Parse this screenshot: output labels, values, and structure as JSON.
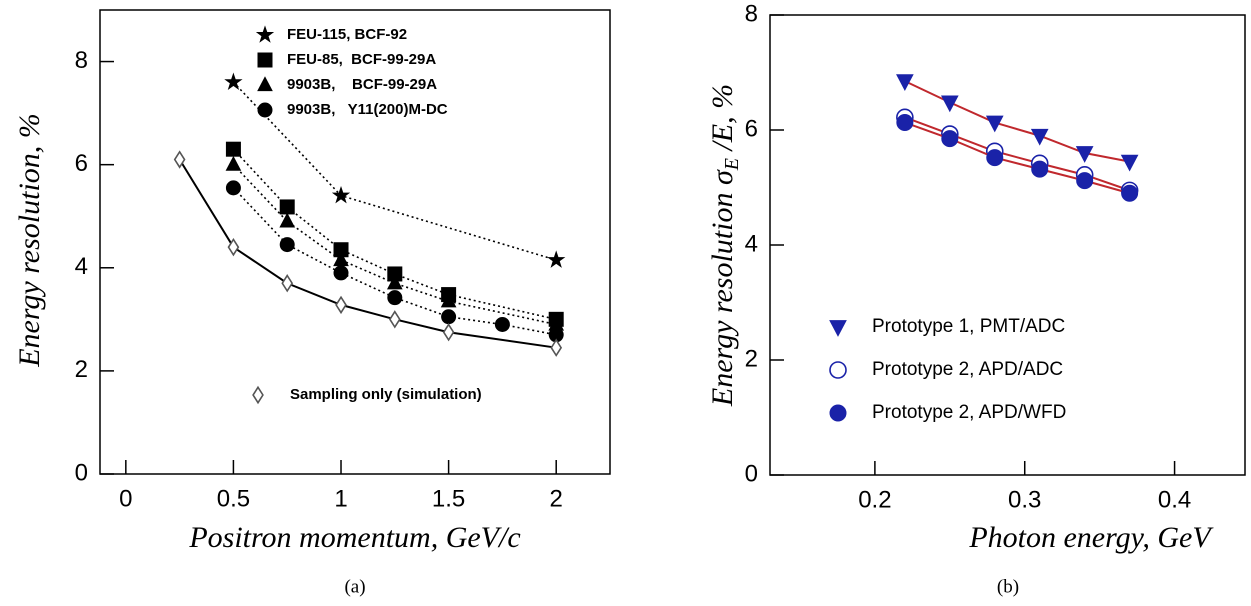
{
  "chart_data": [
    {
      "type": "scatter",
      "caption": "(a)",
      "xlabel": "Positron momentum, GeV/c",
      "ylabel": "Energy resolution, %",
      "xlim": [
        -0.12,
        2.25
      ],
      "ylim": [
        0,
        9
      ],
      "xticks": [
        0,
        0.5,
        1,
        1.5,
        2
      ],
      "yticks": [
        0,
        2,
        4,
        6,
        8
      ],
      "series": [
        {
          "name": "FEU-115, BCF-92",
          "color": "#000000",
          "marker": "star",
          "filled": true,
          "line": "dotted",
          "line_color": "#000000",
          "x": [
            0.5,
            1,
            2
          ],
          "values": [
            7.6,
            5.4,
            4.15
          ]
        },
        {
          "name": "FEU-85,  BCF-99-29A",
          "color": "#000000",
          "marker": "square",
          "filled": true,
          "line": "dotted",
          "line_color": "#000000",
          "x": [
            0.5,
            0.75,
            1,
            1.25,
            1.5,
            2
          ],
          "values": [
            6.3,
            5.18,
            4.35,
            3.88,
            3.48,
            3.0
          ]
        },
        {
          "name": "9903B,    BCF-99-29A",
          "color": "#000000",
          "marker": "triangle",
          "filled": true,
          "line": "dotted",
          "line_color": "#000000",
          "x": [
            0.5,
            0.75,
            1,
            1.25,
            1.5,
            2
          ],
          "values": [
            6.0,
            4.9,
            4.15,
            3.7,
            3.35,
            2.9
          ]
        },
        {
          "name": "9903B,   Y11(200)M-DC",
          "color": "#000000",
          "marker": "circle",
          "filled": true,
          "line": "dotted",
          "line_color": "#000000",
          "x": [
            0.5,
            0.75,
            1,
            1.25,
            1.5,
            1.75,
            2
          ],
          "values": [
            5.55,
            4.45,
            3.9,
            3.42,
            3.05,
            2.9,
            2.7
          ]
        },
        {
          "name": "Sampling only (simulation)",
          "color": "#555555",
          "marker": "diamond",
          "filled": false,
          "line": "solid",
          "line_color": "#000000",
          "x": [
            0.25,
            0.5,
            0.75,
            1,
            1.25,
            1.5,
            2
          ],
          "values": [
            6.1,
            4.4,
            3.7,
            3.28,
            3.0,
            2.75,
            2.45
          ]
        }
      ]
    },
    {
      "type": "scatter",
      "caption": "(b)",
      "xlabel": "Photon energy, GeV",
      "ylabel": "Energy resolution σ",
      "ylabel_sub": "E",
      "ylabel_tail": " /E, %",
      "xlim": [
        0.13,
        0.447
      ],
      "ylim": [
        0,
        8
      ],
      "xticks": [
        0.2,
        0.3,
        0.4
      ],
      "yticks": [
        0,
        2,
        4,
        6,
        8
      ],
      "series": [
        {
          "name": "Prototype 1, PMT/ADC",
          "color": "#1a22a8",
          "marker": "triangle-down",
          "filled": true,
          "line": "solid",
          "line_color": "#c0282d",
          "x": [
            0.22,
            0.25,
            0.28,
            0.31,
            0.34,
            0.37
          ],
          "values": [
            6.85,
            6.48,
            6.13,
            5.9,
            5.6,
            5.45
          ]
        },
        {
          "name": "Prototype 2, APD/ADC",
          "color": "#1a22a8",
          "marker": "circle",
          "filled": false,
          "line": "solid",
          "line_color": "#c0282d",
          "x": [
            0.22,
            0.25,
            0.28,
            0.31,
            0.34,
            0.37
          ],
          "values": [
            6.22,
            5.93,
            5.63,
            5.42,
            5.22,
            4.95
          ]
        },
        {
          "name": "Prototype 2, APD/WFD",
          "color": "#1a22a8",
          "marker": "circle",
          "filled": true,
          "line": "solid",
          "line_color": "#c0282d",
          "x": [
            0.22,
            0.25,
            0.28,
            0.31,
            0.34,
            0.37
          ],
          "values": [
            6.13,
            5.85,
            5.52,
            5.32,
            5.12,
            4.9
          ]
        }
      ]
    }
  ]
}
